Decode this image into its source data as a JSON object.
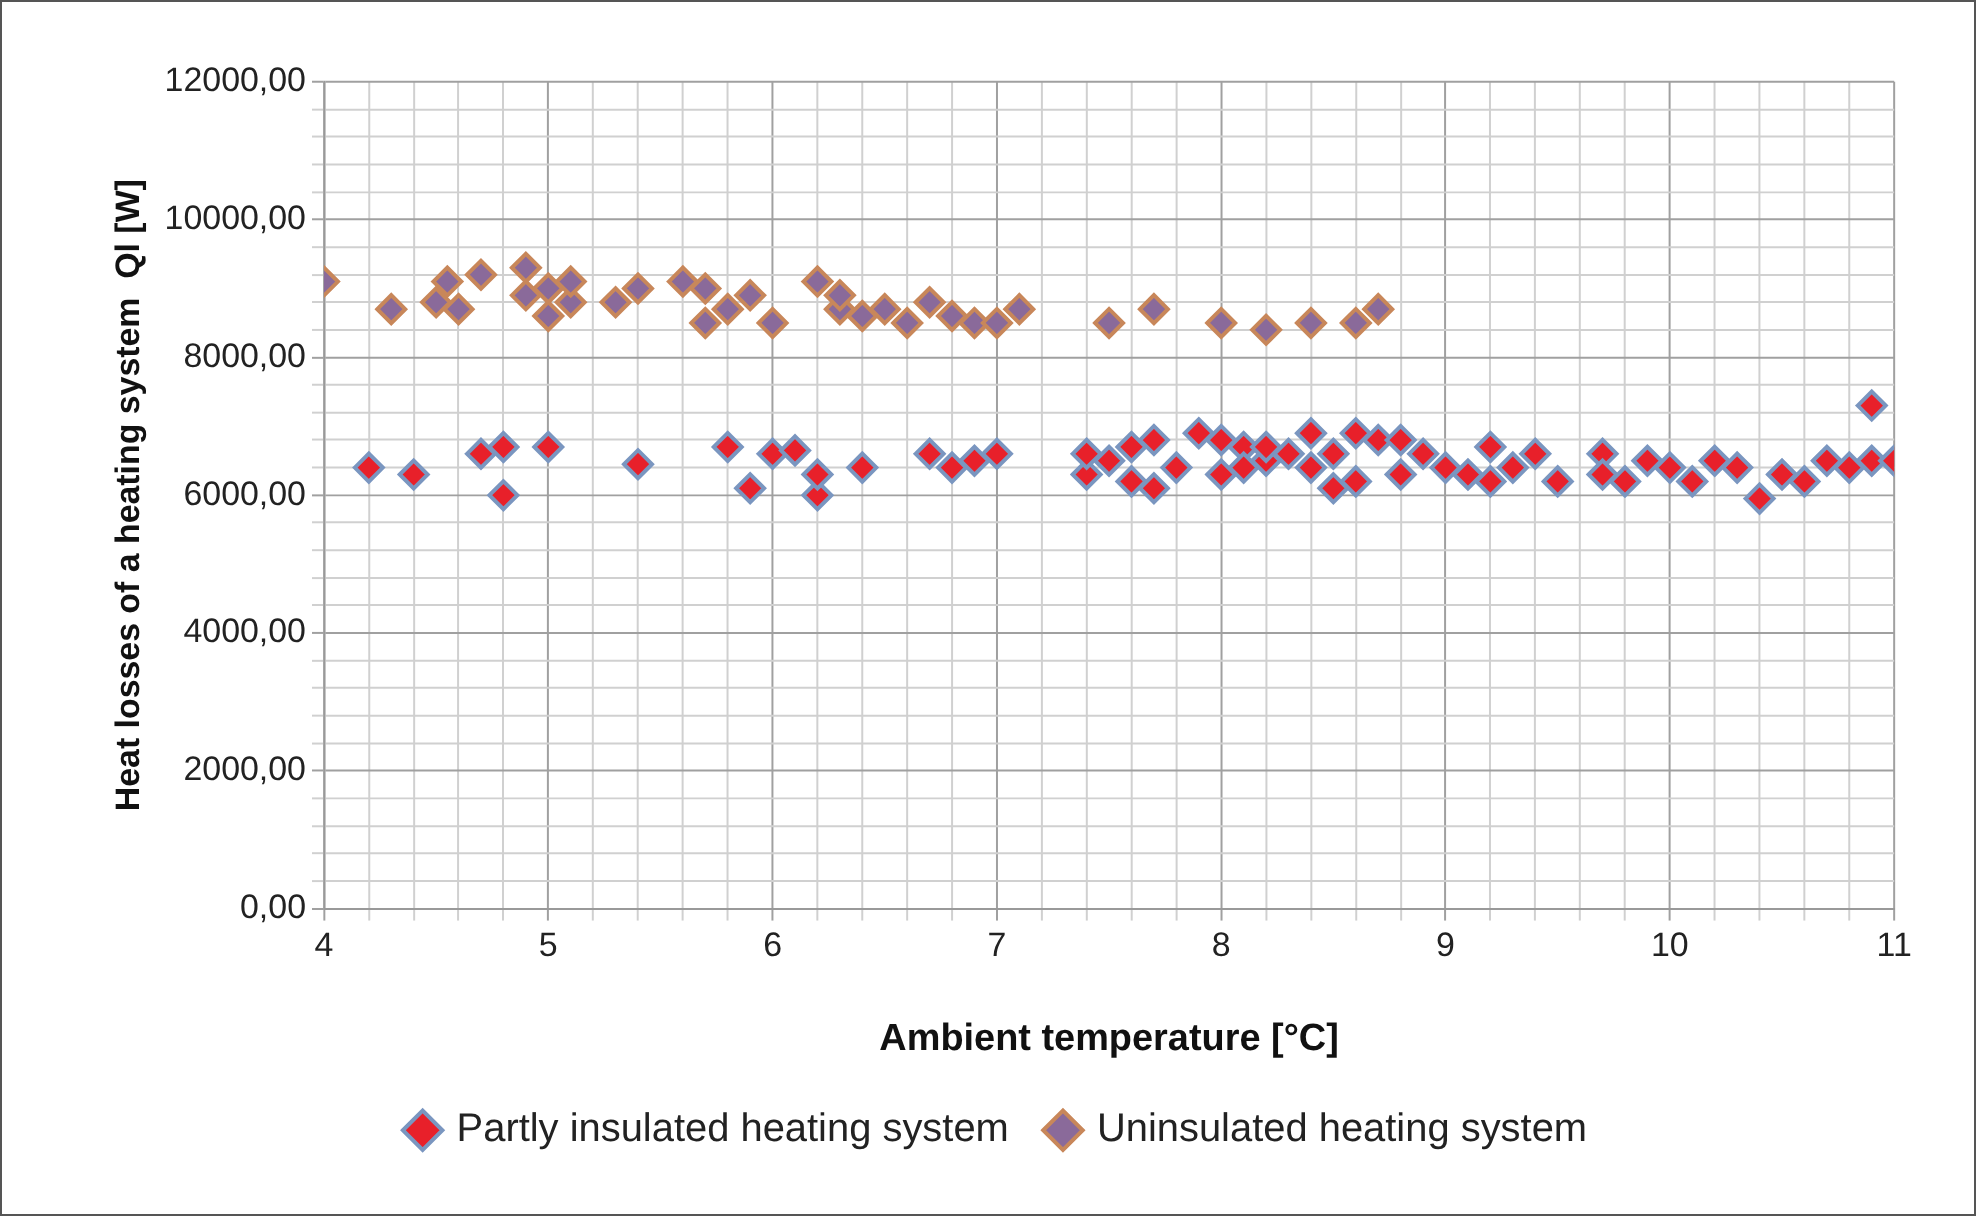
{
  "chart_data": {
    "type": "scatter",
    "xlabel": "Ambient temperature [°C]",
    "ylabel": "Heat losses of a heating system  Ql [W]",
    "xlim": [
      4,
      11
    ],
    "ylim": [
      0,
      12000
    ],
    "xticks": [
      4,
      {
        "value": 4.2,
        "label": null
      },
      {
        "value": 4.4,
        "label": null
      },
      {
        "value": 4.6,
        "label": null
      },
      {
        "value": 4.8,
        "label": null
      },
      5,
      {
        "value": 5.2,
        "label": null
      },
      {
        "value": 5.4,
        "label": null
      },
      {
        "value": 5.6,
        "label": null
      },
      {
        "value": 5.8,
        "label": null
      },
      6,
      {
        "value": 6.2,
        "label": null
      },
      {
        "value": 6.4,
        "label": null
      },
      {
        "value": 6.6,
        "label": null
      },
      {
        "value": 6.8,
        "label": null
      },
      7,
      {
        "value": 7.2,
        "label": null
      },
      {
        "value": 7.4,
        "label": null
      },
      {
        "value": 7.6,
        "label": null
      },
      {
        "value": 7.8,
        "label": null
      },
      8,
      {
        "value": 8.2,
        "label": null
      },
      {
        "value": 8.4,
        "label": null
      },
      {
        "value": 8.6,
        "label": null
      },
      {
        "value": 8.8,
        "label": null
      },
      9,
      {
        "value": 9.2,
        "label": null
      },
      {
        "value": 9.4,
        "label": null
      },
      {
        "value": 9.6,
        "label": null
      },
      {
        "value": 9.8,
        "label": null
      },
      10,
      {
        "value": 10.2,
        "label": null
      },
      {
        "value": 10.4,
        "label": null
      },
      {
        "value": 10.6,
        "label": null
      },
      {
        "value": 10.8,
        "label": null
      },
      11
    ],
    "yticks": [
      {
        "value": 0,
        "label": "0,00"
      },
      {
        "value": 400,
        "label": null
      },
      {
        "value": 800,
        "label": null
      },
      {
        "value": 1200,
        "label": null
      },
      {
        "value": 1600,
        "label": null
      },
      {
        "value": 2000,
        "label": "2000,00"
      },
      {
        "value": 2400,
        "label": null
      },
      {
        "value": 2800,
        "label": null
      },
      {
        "value": 3200,
        "label": null
      },
      {
        "value": 3600,
        "label": null
      },
      {
        "value": 4000,
        "label": "4000,00"
      },
      {
        "value": 4400,
        "label": null
      },
      {
        "value": 4800,
        "label": null
      },
      {
        "value": 5200,
        "label": null
      },
      {
        "value": 5600,
        "label": null
      },
      {
        "value": 6000,
        "label": "6000,00"
      },
      {
        "value": 6400,
        "label": null
      },
      {
        "value": 6800,
        "label": null
      },
      {
        "value": 7200,
        "label": null
      },
      {
        "value": 7600,
        "label": null
      },
      {
        "value": 8000,
        "label": "8000,00"
      },
      {
        "value": 8400,
        "label": null
      },
      {
        "value": 8800,
        "label": null
      },
      {
        "value": 9200,
        "label": null
      },
      {
        "value": 9600,
        "label": null
      },
      {
        "value": 10000,
        "label": "10000,00"
      },
      {
        "value": 10400,
        "label": null
      },
      {
        "value": 10800,
        "label": null
      },
      {
        "value": 11200,
        "label": null
      },
      {
        "value": 11600,
        "label": null
      },
      {
        "value": 12000,
        "label": "12000,00"
      }
    ],
    "grid": true,
    "legend": "bottom",
    "marker": "diamond",
    "series": [
      {
        "name": "Partly insulated heating system",
        "color": "#e8202a",
        "x": [
          4.2,
          4.4,
          4.7,
          4.8,
          4.8,
          5.0,
          5.4,
          5.8,
          5.9,
          6.0,
          6.1,
          6.2,
          6.2,
          6.4,
          6.7,
          6.8,
          6.9,
          7.0,
          7.4,
          7.4,
          7.5,
          7.6,
          7.6,
          7.7,
          7.7,
          7.8,
          7.9,
          8.0,
          8.0,
          8.1,
          8.1,
          8.2,
          8.2,
          8.3,
          8.4,
          8.4,
          8.5,
          8.5,
          8.6,
          8.6,
          8.7,
          8.8,
          8.8,
          8.9,
          9.0,
          9.1,
          9.2,
          9.2,
          9.3,
          9.4,
          9.5,
          9.7,
          9.7,
          9.8,
          9.9,
          10.0,
          10.1,
          10.2,
          10.3,
          10.4,
          10.5,
          10.6,
          10.7,
          10.8,
          10.9,
          10.9,
          11.0
        ],
        "values": [
          6400,
          6300,
          6600,
          6000,
          6700,
          6700,
          6450,
          6700,
          6100,
          6600,
          6650,
          6000,
          6300,
          6400,
          6600,
          6400,
          6500,
          6600,
          6300,
          6600,
          6500,
          6700,
          6200,
          6800,
          6100,
          6400,
          6900,
          6300,
          6800,
          6700,
          6400,
          6500,
          6700,
          6600,
          6900,
          6400,
          6100,
          6600,
          6900,
          6200,
          6800,
          6300,
          6800,
          6600,
          6400,
          6300,
          6700,
          6200,
          6400,
          6600,
          6200,
          6600,
          6300,
          6200,
          6500,
          6400,
          6200,
          6500,
          6400,
          5950,
          6300,
          6200,
          6500,
          6400,
          7300,
          6500,
          6500
        ]
      },
      {
        "name": "Uninsulated heating system",
        "color": "#8a6a9a",
        "x": [
          4.0,
          4.3,
          4.5,
          4.55,
          4.6,
          4.7,
          4.9,
          4.9,
          5.0,
          5.0,
          5.1,
          5.1,
          5.3,
          5.4,
          5.6,
          5.7,
          5.7,
          5.8,
          5.9,
          6.0,
          6.2,
          6.3,
          6.3,
          6.4,
          6.5,
          6.6,
          6.7,
          6.8,
          6.9,
          7.0,
          7.1,
          7.5,
          7.7,
          8.0,
          8.2,
          8.4,
          8.6,
          8.7
        ],
        "values": [
          9100,
          8700,
          8800,
          9100,
          8700,
          9200,
          9300,
          8900,
          8600,
          9000,
          8800,
          9100,
          8800,
          9000,
          9100,
          8500,
          9000,
          8700,
          8900,
          8500,
          9100,
          8700,
          8900,
          8600,
          8700,
          8500,
          8800,
          8600,
          8500,
          8500,
          8700,
          8500,
          8700,
          8500,
          8400,
          8500,
          8500,
          8700
        ]
      }
    ]
  }
}
